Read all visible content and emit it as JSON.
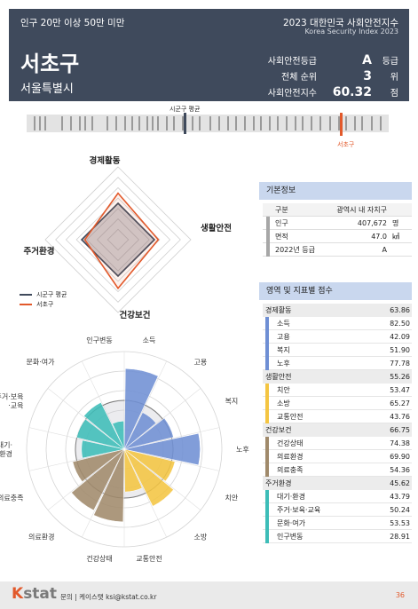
{
  "header": {
    "category": "인구 20만 이상 50만 미만",
    "report_title": "2023 대한민국 사회안전지수",
    "report_subtitle": "Korea Security Index 2023",
    "district": "서초구",
    "city": "서울특별시",
    "stats": [
      {
        "label": "사회안전등급",
        "value": "A",
        "unit": "등급"
      },
      {
        "label": "전체 순위",
        "value": "3",
        "unit": "위"
      },
      {
        "label": "사회안전지수",
        "value": "60.32",
        "unit": "점"
      }
    ],
    "value_color": "#ffffff"
  },
  "ranking": {
    "avg_label": "시군구 평균",
    "self_label": "서초구",
    "avg_color": "#3f4a5c",
    "self_color": "#e2592b",
    "positions": [
      0.02,
      0.035,
      0.05,
      0.095,
      0.12,
      0.145,
      0.16,
      0.18,
      0.22,
      0.245,
      0.27,
      0.29,
      0.31,
      0.33,
      0.345,
      0.36,
      0.385,
      0.405,
      0.43,
      0.455,
      0.475,
      0.505,
      0.53,
      0.555,
      0.575,
      0.6,
      0.625,
      0.645,
      0.67,
      0.69,
      0.715,
      0.74,
      0.76,
      0.785,
      0.81,
      0.835,
      0.86,
      0.88,
      0.905,
      0.925,
      0.95,
      0.975
    ],
    "avg_position": 0.435,
    "self_position": 0.865
  },
  "radar": {
    "axes": [
      "경제활동",
      "생활안전",
      "건강보건",
      "주거환경"
    ],
    "series": [
      {
        "name": "시군구 평균",
        "color": "#3f4a5c",
        "values": [
          50,
          50,
          50,
          50
        ]
      },
      {
        "name": "서초구",
        "color": "#e2592b",
        "values": [
          63.86,
          55.26,
          66.75,
          45.62
        ]
      }
    ],
    "max": 100
  },
  "info": {
    "title": "기본정보",
    "header": [
      "구분",
      "광역시 내 자치구",
      ""
    ],
    "rows": [
      {
        "label": "인구",
        "value": "407,672",
        "unit": "명"
      },
      {
        "label": "면적",
        "value": "47.0",
        "unit": "㎢"
      },
      {
        "label": "2022년 등급",
        "value": "A",
        "unit": ""
      }
    ]
  },
  "scores": {
    "title": "영역 및 지표별 점수",
    "domains": [
      {
        "name": "경제활동",
        "score": "63.86",
        "color": "#6f8fd4",
        "items": [
          {
            "name": "소득",
            "score": "82.50"
          },
          {
            "name": "고용",
            "score": "42.09"
          },
          {
            "name": "복지",
            "score": "51.90"
          },
          {
            "name": "노후",
            "score": "77.78"
          }
        ]
      },
      {
        "name": "생활안전",
        "score": "55.26",
        "color": "#f4c542",
        "items": [
          {
            "name": "치안",
            "score": "53.47"
          },
          {
            "name": "소방",
            "score": "65.27"
          },
          {
            "name": "교통안전",
            "score": "43.76"
          }
        ]
      },
      {
        "name": "건강보건",
        "score": "66.75",
        "color": "#a08a6b",
        "items": [
          {
            "name": "건강상태",
            "score": "74.38"
          },
          {
            "name": "의료환경",
            "score": "69.90"
          },
          {
            "name": "의료충족",
            "score": "54.36"
          }
        ]
      },
      {
        "name": "주거환경",
        "score": "45.62",
        "color": "#3dbdb8",
        "items": [
          {
            "name": "대기·환경",
            "score": "43.79"
          },
          {
            "name": "주거·보육·교육",
            "score": "50.24"
          },
          {
            "name": "문화·여가",
            "score": "53.53"
          },
          {
            "name": "인구변동",
            "score": "28.91"
          }
        ]
      }
    ]
  },
  "chart_data": {
    "type": "polar-bar",
    "categories": [
      "소득",
      "고용",
      "복지",
      "노후",
      "치안",
      "소방",
      "교통안전",
      "건강상태",
      "의료환경",
      "의료충족",
      "대기·\n환경",
      "주거·보육\n·교육",
      "문화·여가",
      "인구변동"
    ],
    "values": [
      82.5,
      42.09,
      51.9,
      77.78,
      53.47,
      65.27,
      43.76,
      74.38,
      69.9,
      54.36,
      43.79,
      50.24,
      53.53,
      28.91
    ],
    "colors": [
      "#6f8fd4",
      "#6f8fd4",
      "#6f8fd4",
      "#6f8fd4",
      "#f4c542",
      "#f4c542",
      "#f4c542",
      "#a08a6b",
      "#a08a6b",
      "#a08a6b",
      "#3dbdb8",
      "#3dbdb8",
      "#3dbdb8",
      "#3dbdb8"
    ],
    "max": 100,
    "average": 50
  },
  "footer": {
    "logo_k": "K",
    "logo_rest": "stat",
    "contact": "문의 | 케이스탯 ksi@kstat.co.kr",
    "page": "36"
  }
}
